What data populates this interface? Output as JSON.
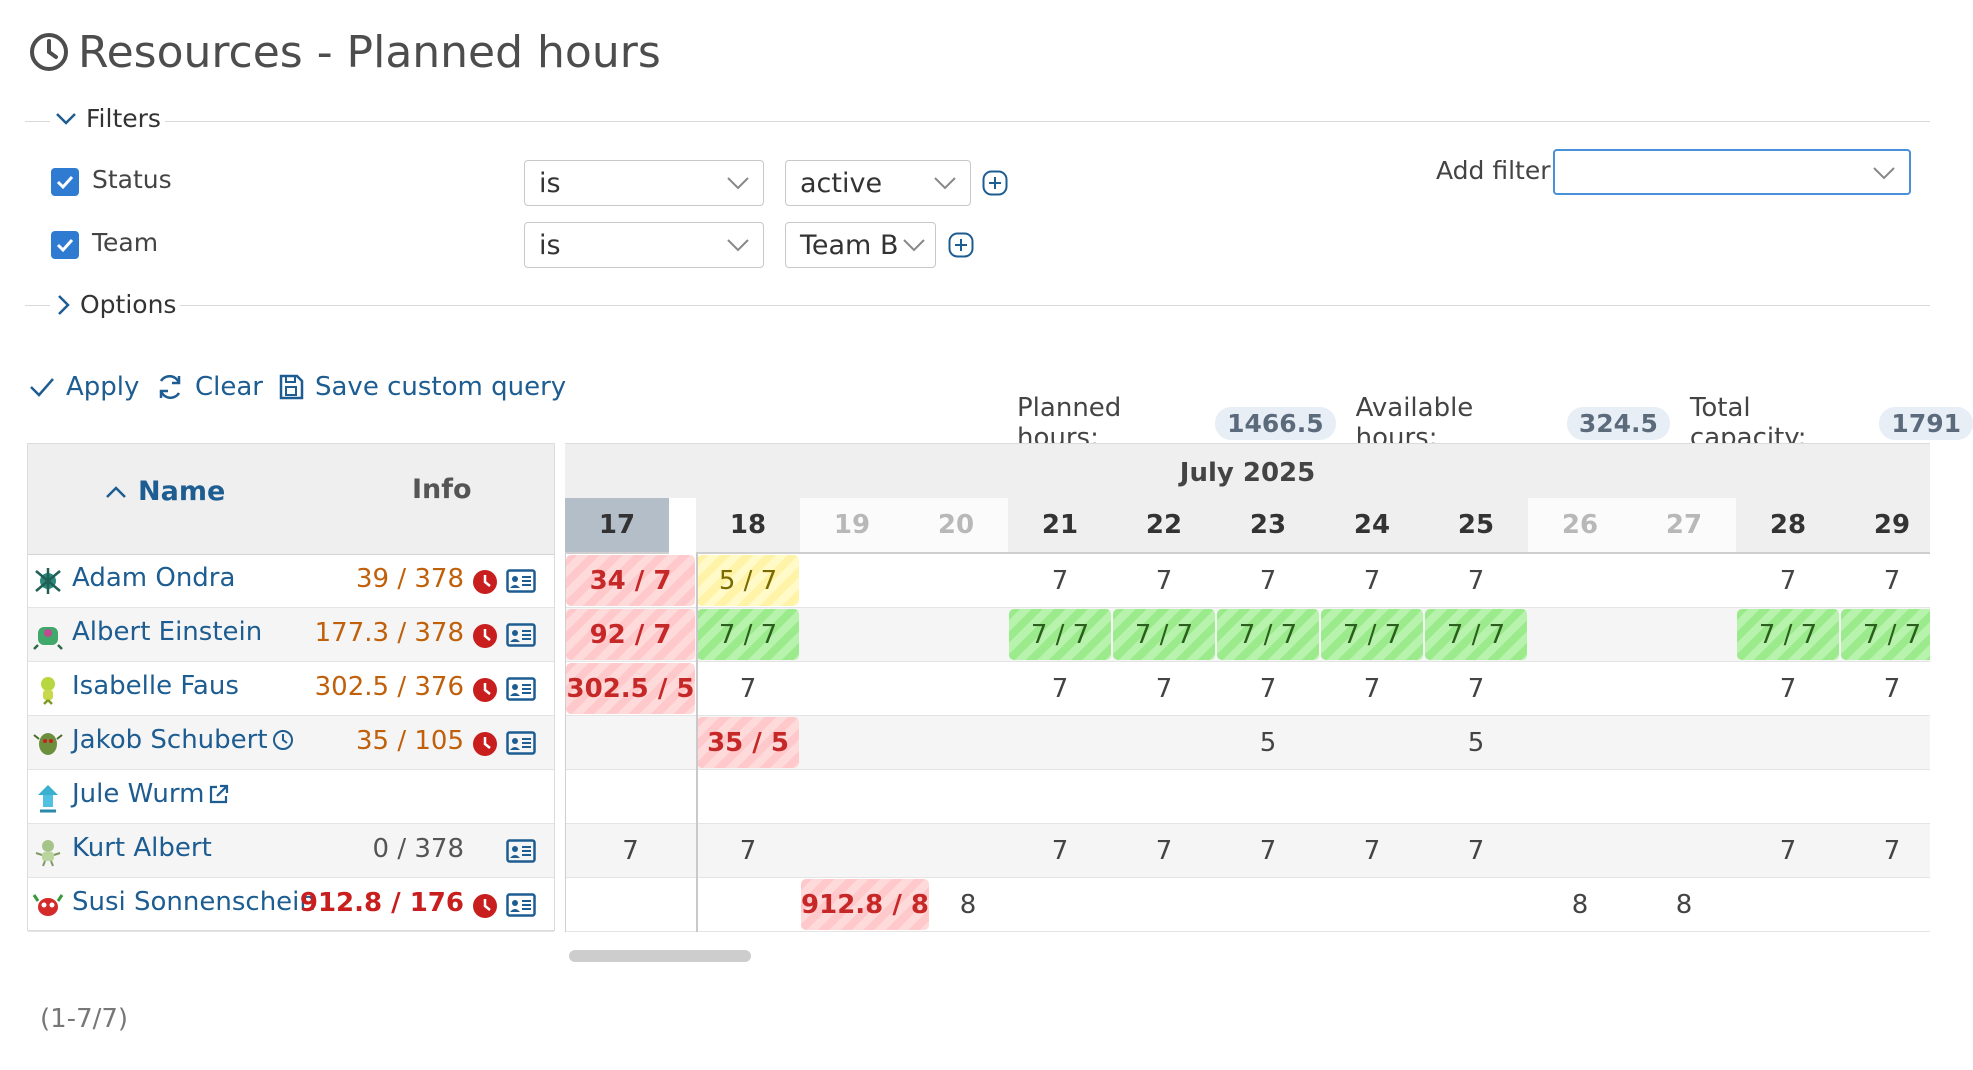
{
  "title": "Resources - Planned hours",
  "filters": {
    "legend": "Filters",
    "rows": [
      {
        "name": "Status",
        "operator": "is",
        "value": "active"
      },
      {
        "name": "Team",
        "operator": "is",
        "value": "Team B"
      }
    ],
    "add_filter_label": "Add filter"
  },
  "options": {
    "legend": "Options"
  },
  "actions": {
    "apply": "Apply",
    "clear": "Clear",
    "save": "Save custom query"
  },
  "totals": {
    "planned_label": "Planned hours:",
    "planned_value": "1466.5",
    "available_label": "Available hours:",
    "available_value": "324.5",
    "capacity_label": "Total capacity:",
    "capacity_value": "1791"
  },
  "table": {
    "name_header": "Name",
    "info_header": "Info",
    "month": "July 2025",
    "days": [
      "17",
      "18",
      "19",
      "20",
      "21",
      "22",
      "23",
      "24",
      "25",
      "26",
      "27",
      "28",
      "29"
    ],
    "people": [
      {
        "name": "Adam Ondra",
        "info": "39 / 378",
        "cells": [
          "34 / 7",
          "5 / 7",
          "",
          "",
          "7",
          "7",
          "7",
          "7",
          "7",
          "",
          "",
          "7",
          "7"
        ]
      },
      {
        "name": "Albert Einstein",
        "info": "177.3 / 378",
        "cells": [
          "92 / 7",
          "7 / 7",
          "",
          "",
          "7 / 7",
          "7 / 7",
          "7 / 7",
          "7 / 7",
          "7 / 7",
          "",
          "",
          "7 / 7",
          "7 / 7"
        ]
      },
      {
        "name": "Isabelle Faus",
        "info": "302.5 / 376",
        "cells": [
          "302.5 / 5",
          "7",
          "",
          "",
          "7",
          "7",
          "7",
          "7",
          "7",
          "",
          "",
          "7",
          "7"
        ]
      },
      {
        "name": "Jakob Schubert",
        "info": "35 / 105",
        "cells": [
          "",
          "35 / 5",
          "",
          "",
          "",
          "",
          "5",
          "",
          "5",
          "",
          "",
          "",
          ""
        ]
      },
      {
        "name": "Jule Wurm",
        "info": "",
        "cells": [
          "",
          "",
          "",
          "",
          "",
          "",
          "",
          "",
          "",
          "",
          "",
          "",
          ""
        ]
      },
      {
        "name": "Kurt Albert",
        "info": "0 / 378",
        "cells": [
          "7",
          "7",
          "",
          "",
          "7",
          "7",
          "7",
          "7",
          "7",
          "",
          "",
          "7",
          "7"
        ]
      },
      {
        "name": "Susi Sonnenschein",
        "info": "912.8 / 176",
        "cells": [
          "",
          "",
          "912.8 / 8",
          "8",
          "",
          "",
          "",
          "",
          "",
          "8",
          "8",
          "",
          ""
        ]
      }
    ]
  },
  "pager": "(1-7/7)",
  "colors": {
    "link": "#1d5d91",
    "danger": "#c81e1e",
    "warning": "#c0600b",
    "check": "#2e7bd1"
  }
}
